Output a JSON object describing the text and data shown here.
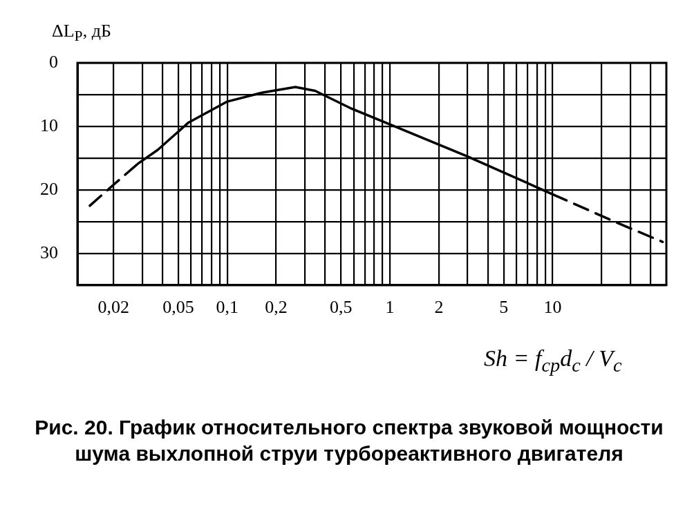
{
  "chart_data": {
    "type": "line",
    "ylabel": "ΔL$_{P}$, дБ",
    "xlabel": "Sh = f$_{ср}$d$_{с}$ / V$_{с}$",
    "annotations": [
      "Рис. 20. График относительного спектра звуковой мощности шума выхлопной струи турбореактивного двигателя"
    ],
    "log": "x",
    "grid": true,
    "xlim": [
      0.012,
      50
    ],
    "ylim": [
      35,
      0
    ],
    "xticks": [
      {
        "value": 0.02,
        "label": "0,02"
      },
      {
        "value": 0.03,
        "label": null
      },
      {
        "value": 0.04,
        "label": null
      },
      {
        "value": 0.05,
        "label": "0,05"
      },
      {
        "value": 0.06,
        "label": null
      },
      {
        "value": 0.07,
        "label": null
      },
      {
        "value": 0.08,
        "label": null
      },
      {
        "value": 0.09,
        "label": null
      },
      {
        "value": 0.1,
        "label": "0,1"
      },
      {
        "value": 0.2,
        "label": "0,2"
      },
      {
        "value": 0.3,
        "label": null
      },
      {
        "value": 0.4,
        "label": null
      },
      {
        "value": 0.5,
        "label": "0,5"
      },
      {
        "value": 0.6,
        "label": null
      },
      {
        "value": 0.7,
        "label": null
      },
      {
        "value": 0.8,
        "label": null
      },
      {
        "value": 0.9,
        "label": null
      },
      {
        "value": 1,
        "label": "1"
      },
      {
        "value": 2,
        "label": "2"
      },
      {
        "value": 3,
        "label": null
      },
      {
        "value": 4,
        "label": null
      },
      {
        "value": 5,
        "label": "5"
      },
      {
        "value": 6,
        "label": null
      },
      {
        "value": 7,
        "label": null
      },
      {
        "value": 8,
        "label": null
      },
      {
        "value": 9,
        "label": null
      },
      {
        "value": 10,
        "label": "10"
      },
      {
        "value": 20,
        "label": null
      },
      {
        "value": 30,
        "label": null
      },
      {
        "value": 40,
        "label": null
      }
    ],
    "yticks": [
      0,
      {
        "value": 5,
        "label": null
      },
      10,
      {
        "value": 15,
        "label": null
      },
      20,
      {
        "value": 25,
        "label": null
      },
      30,
      {
        "value": 35,
        "label": null
      }
    ],
    "series": [
      {
        "color": "#000000",
        "line_style": "dashed",
        "x": [
          0.0143,
          0.02,
          0.0282
        ],
        "values": [
          22.5,
          19.2,
          15.9
        ]
      },
      {
        "color": "#000000",
        "line_style": "solid",
        "x": [
          0.0282,
          0.0374,
          0.0578,
          0.1,
          0.163,
          0.262,
          0.347,
          0.58,
          1,
          2.97,
          7.4,
          10
        ],
        "values": [
          15.9,
          13.7,
          9.4,
          6.1,
          4.7,
          3.8,
          4.4,
          7.2,
          9.7,
          14.7,
          19.2,
          20.7
        ]
      },
      {
        "color": "#000000",
        "line_style": "dashed",
        "x": [
          10,
          25,
          47.5
        ],
        "values": [
          20.7,
          25.2,
          28.2
        ]
      }
    ]
  }
}
